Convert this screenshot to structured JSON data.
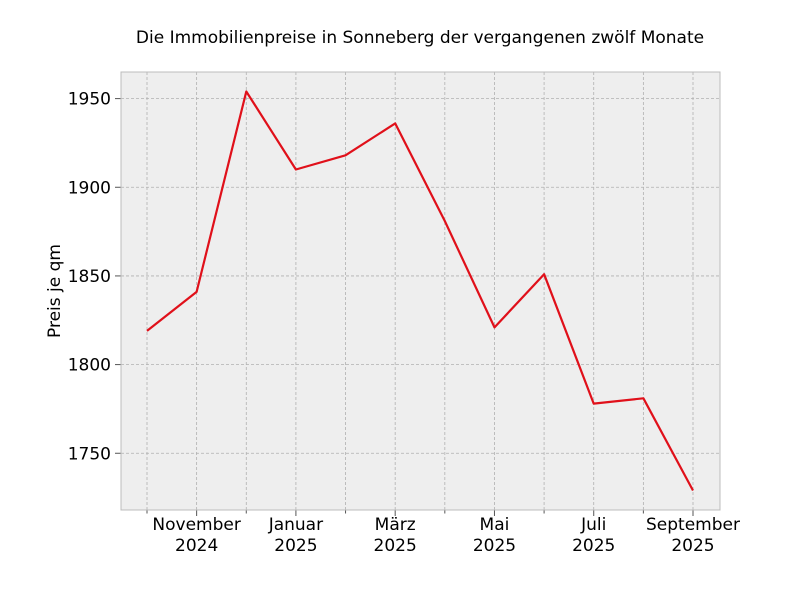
{
  "chart_data": {
    "type": "line",
    "title": "Die Immobilienpreise in Sonneberg der vergangenen zwölf Monate",
    "xlabel": "",
    "ylabel": "Preis je qm",
    "x": [
      "2024-10",
      "2024-11",
      "2024-12",
      "2025-01",
      "2025-02",
      "2025-03",
      "2025-04",
      "2025-05",
      "2025-06",
      "2025-07",
      "2025-08",
      "2025-09"
    ],
    "x_tick_labels": [
      {
        "month": "2024-11",
        "line1": "November",
        "line2": "2024"
      },
      {
        "month": "2025-01",
        "line1": "Januar",
        "line2": "2025"
      },
      {
        "month": "2025-03",
        "line1": "März",
        "line2": "2025"
      },
      {
        "month": "2025-05",
        "line1": "Mai",
        "line2": "2025"
      },
      {
        "month": "2025-07",
        "line1": "Juli",
        "line2": "2025"
      },
      {
        "month": "2025-09",
        "line1": "September",
        "line2": "2025"
      }
    ],
    "series": [
      {
        "values": [
          1819,
          1841,
          1954,
          1910,
          1918,
          1936,
          1881,
          1821,
          1851,
          1778,
          1781,
          1729
        ],
        "color": "#e0101a"
      }
    ],
    "yticks": [
      1750,
      1800,
      1850,
      1900,
      1950
    ],
    "ylim": [
      1718,
      1965
    ],
    "grid": true,
    "background": "#eeeeee"
  }
}
